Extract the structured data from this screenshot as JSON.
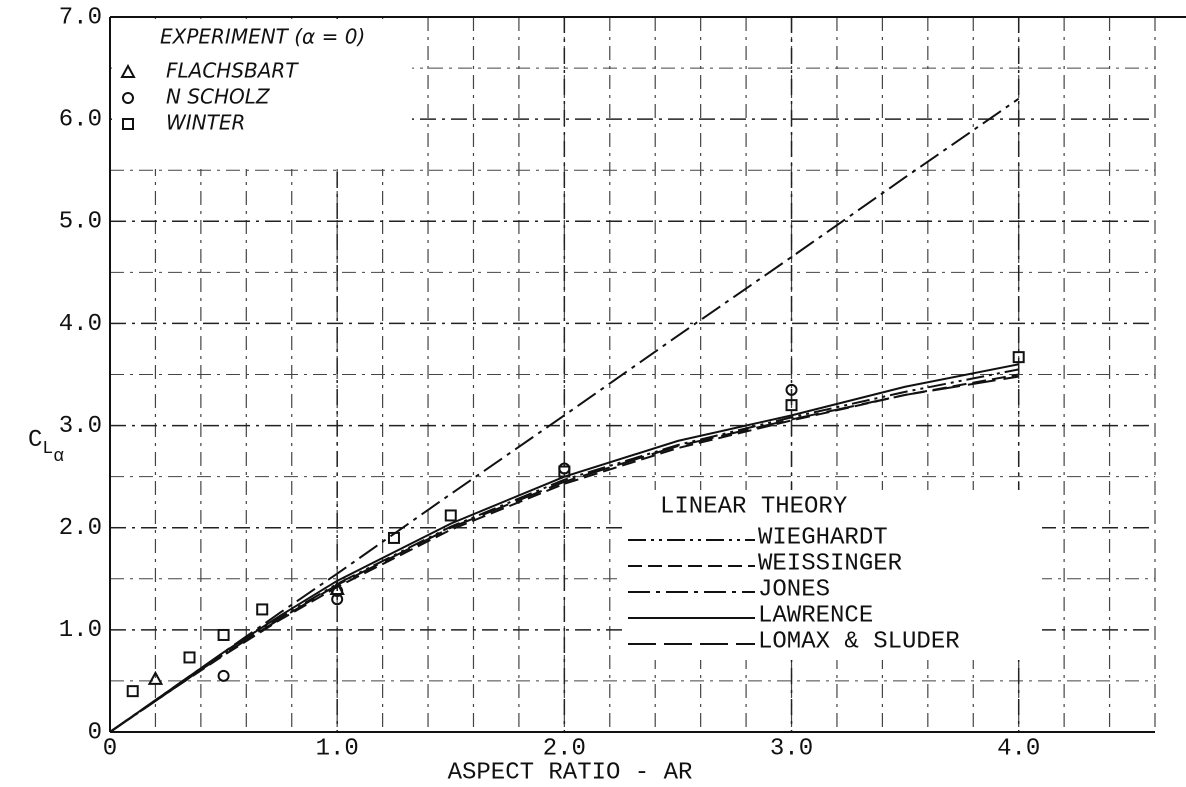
{
  "chart_data": {
    "type": "line",
    "x_label": "ASPECT RATIO - AR",
    "y_label": [
      "C",
      "L",
      "α"
    ],
    "xlim": [
      0,
      4.6
    ],
    "ylim": [
      0,
      7
    ],
    "xticks": [
      0,
      {
        "value": 1,
        "label": "1.0"
      },
      {
        "value": 2,
        "label": "2.0"
      },
      {
        "value": 3,
        "label": "3.0"
      },
      {
        "value": 4,
        "label": "4.0"
      }
    ],
    "yticks": [
      0,
      {
        "value": 1,
        "label": "1.0"
      },
      {
        "value": 2,
        "label": "2.0"
      },
      {
        "value": 3,
        "label": "3.0"
      },
      {
        "value": 4,
        "label": "4.0"
      },
      {
        "value": 5,
        "label": "5.0"
      },
      {
        "value": 6,
        "label": "6.0"
      },
      {
        "value": 7,
        "label": "7.0"
      }
    ],
    "grid": true,
    "legend_title": "LINEAR THEORY",
    "x": [
      0,
      0.25,
      0.5,
      0.75,
      1.0,
      1.5,
      2.0,
      2.5,
      3.0,
      3.5,
      4.0
    ],
    "series": [
      {
        "name": "WIEGHARDT",
        "color": "#111111",
        "linestyle": "dashdotdot",
        "values": [
          0,
          0.38,
          0.76,
          1.12,
          1.45,
          2.01,
          2.47,
          2.81,
          3.08,
          3.33,
          3.55
        ]
      },
      {
        "name": "WEISSINGER",
        "color": "#111111",
        "linestyle": "dashed",
        "values": [
          0,
          0.38,
          0.75,
          1.1,
          1.42,
          1.98,
          2.43,
          2.78,
          3.05,
          3.3,
          3.5
        ]
      },
      {
        "name": "JONES",
        "color": "#111111",
        "linestyle": "dashdot",
        "values": [
          0,
          0.39,
          0.78,
          1.17,
          1.55,
          2.33,
          3.1,
          3.88,
          4.65,
          5.43,
          6.2
        ]
      },
      {
        "name": "LAWRENCE",
        "color": "#111111",
        "linestyle": "solid",
        "values": [
          0,
          0.39,
          0.78,
          1.14,
          1.48,
          2.04,
          2.5,
          2.85,
          3.1,
          3.38,
          3.6
        ]
      },
      {
        "name": "LOMAX & SLUDER",
        "color": "#111111",
        "linestyle": "longdash",
        "values": [
          0,
          0.38,
          0.76,
          1.11,
          1.44,
          2.0,
          2.45,
          2.8,
          3.06,
          3.3,
          3.48
        ]
      }
    ],
    "experiment_title": "EXPERIMENT (α = 0)",
    "experiments": [
      {
        "name": "FLACHSBART",
        "marker": "triangle",
        "x": [
          0.2,
          1.0
        ],
        "values": [
          0.52,
          1.4
        ]
      },
      {
        "name": "N SCHOLZ",
        "marker": "circle",
        "x": [
          0.5,
          1.0,
          1.0,
          2.0,
          3.0
        ],
        "values": [
          0.55,
          1.3,
          1.38,
          2.58,
          3.35
        ]
      },
      {
        "name": "WINTER",
        "marker": "square",
        "x": [
          0.1,
          0.35,
          0.5,
          0.67,
          1.25,
          1.5,
          2.0,
          3.0,
          4.0
        ],
        "values": [
          0.4,
          0.73,
          0.95,
          1.2,
          1.9,
          2.12,
          2.55,
          3.2,
          3.67
        ]
      }
    ]
  }
}
